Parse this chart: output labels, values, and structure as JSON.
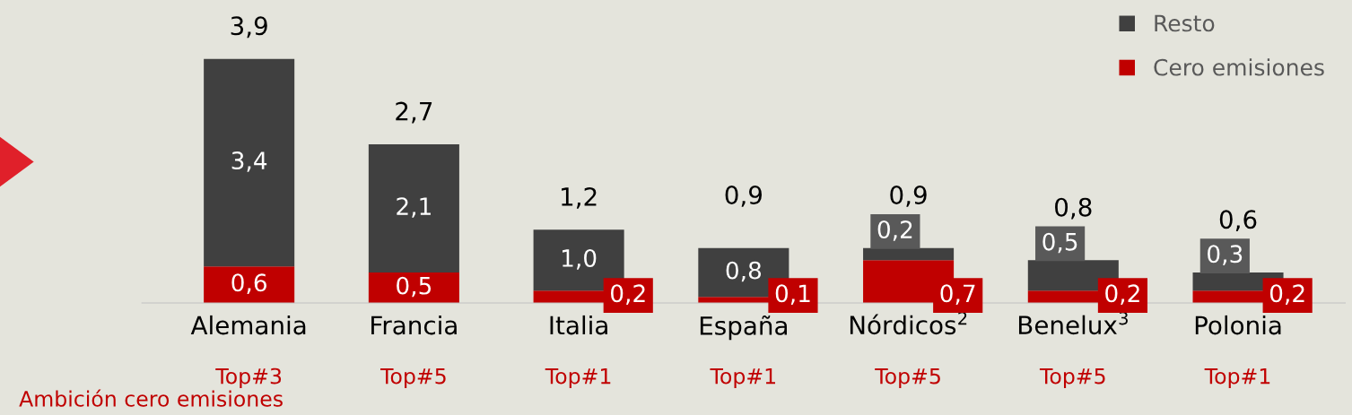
{
  "chart_data": {
    "type": "bar",
    "stacked": true,
    "categories": [
      "Alemania",
      "Francia",
      "Italia",
      "España",
      "Nórdicos$^{2}$",
      "Benelux$^{3}$",
      "Polonia"
    ],
    "series": [
      {
        "name": "Cero emisiones",
        "color": "#c00000",
        "values": [
          0.6,
          0.5,
          0.2,
          0.1,
          0.7,
          0.2,
          0.2
        ],
        "value_labels": [
          "0,6",
          "0,5",
          "0,2",
          "0,1",
          "0,7",
          "0,2",
          "0,2"
        ]
      },
      {
        "name": "Resto",
        "color": "#404040",
        "values": [
          3.4,
          2.1,
          1.0,
          0.8,
          0.2,
          0.5,
          0.3
        ],
        "value_labels": [
          "3,4",
          "2,1",
          "1,0",
          "0,8",
          "0,2",
          "0,5",
          "0,3"
        ]
      }
    ],
    "totals": [
      "3,9",
      "2,7",
      "1,2",
      "0,9",
      "0,9",
      "0,8",
      "0,6"
    ],
    "annotations": [
      "Ambición cero emisiones",
      "Top#3",
      "Top#5",
      "Top#1",
      "Top#1",
      "Top#5",
      "Top#5",
      "Top#1"
    ],
    "legend": "top right",
    "grid": false,
    "tick_labels": "x"
  }
}
